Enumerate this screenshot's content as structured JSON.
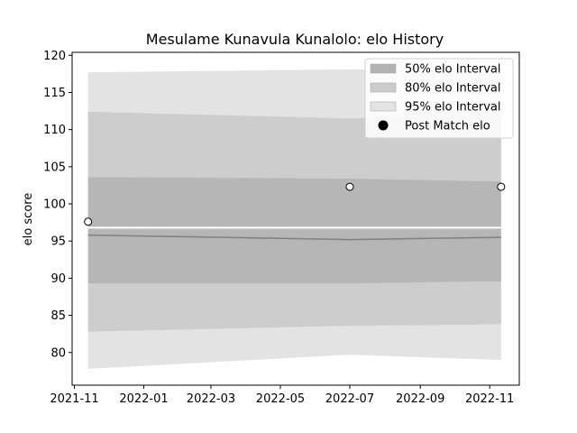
{
  "chart_data": {
    "type": "area",
    "title": "Mesulame Kunavula Kunalolo: elo History",
    "xlabel": "",
    "ylabel": "elo score",
    "xlim": [
      "2021-10-30",
      "2022-11-27"
    ],
    "ylim": [
      75.6,
      120.4
    ],
    "x_ticks": [
      "2021-11",
      "2022-01",
      "2022-03",
      "2022-05",
      "2022-07",
      "2022-09",
      "2022-11"
    ],
    "y_ticks": [
      80,
      85,
      90,
      95,
      100,
      105,
      110,
      115,
      120
    ],
    "grid": false,
    "legend_position": "top-right",
    "dates": [
      "2021-11-13",
      "2022-07-01",
      "2022-11-11"
    ],
    "mean": [
      95.8,
      95.2,
      95.5
    ],
    "bands": [
      {
        "name": "95% elo Interval",
        "color": "#e3e3e3",
        "lower": [
          77.8,
          79.7,
          79.0
        ],
        "upper": [
          117.7,
          118.1,
          117.9
        ]
      },
      {
        "name": "80% elo Interval",
        "color": "#cdcdcd",
        "lower": [
          82.8,
          83.6,
          83.8
        ],
        "upper": [
          112.4,
          111.5,
          112.0
        ]
      },
      {
        "name": "50% elo Interval",
        "color": "#b6b6b6",
        "lower": [
          89.3,
          89.3,
          89.6
        ],
        "upper": [
          103.6,
          103.4,
          103.0
        ]
      }
    ],
    "points": {
      "name": "Post Match elo",
      "dates": [
        "2021-11-13",
        "2022-07-01",
        "2022-11-11"
      ],
      "values": [
        97.6,
        102.3,
        102.3
      ]
    },
    "legend": [
      {
        "label": "50% elo Interval",
        "color": "#b3b3b3",
        "kind": "patch"
      },
      {
        "label": "80% elo Interval",
        "color": "#cccccc",
        "kind": "patch"
      },
      {
        "label": "95% elo Interval",
        "color": "#e3e3e3",
        "kind": "patch"
      },
      {
        "label": "Post Match elo",
        "color": "#000000",
        "kind": "marker"
      }
    ],
    "colors": {
      "mean_line": "#808080",
      "white_line": "#ffffff",
      "axis": "#000000"
    }
  }
}
